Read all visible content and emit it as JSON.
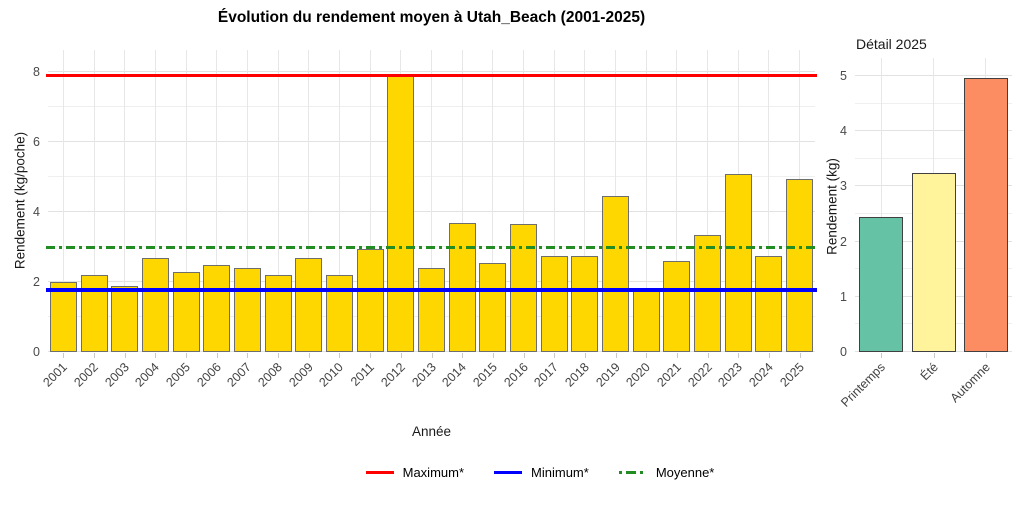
{
  "figure": {
    "background": "#FFFFFF"
  },
  "chart_data": [
    {
      "type": "bar",
      "title": "Évolution du rendement moyen à Utah_Beach (2001-2025)",
      "xlabel": "Année",
      "ylabel": "Rendement (kg/poche)",
      "ylim": [
        0,
        8
      ],
      "yticks": [
        0,
        2,
        4,
        6,
        8
      ],
      "grid": true,
      "legend_position": "bottom",
      "categories": [
        "2001",
        "2002",
        "2003",
        "2004",
        "2005",
        "2006",
        "2007",
        "2008",
        "2009",
        "2010",
        "2011",
        "2012",
        "2013",
        "2014",
        "2015",
        "2016",
        "2017",
        "2018",
        "2019",
        "2020",
        "2021",
        "2022",
        "2023",
        "2024",
        "2025"
      ],
      "values": [
        2.0,
        2.2,
        1.9,
        2.7,
        2.3,
        2.5,
        2.4,
        2.2,
        2.7,
        2.2,
        2.95,
        7.9,
        2.4,
        3.7,
        2.55,
        3.65,
        2.75,
        2.75,
        4.45,
        1.75,
        2.6,
        3.35,
        5.1,
        2.75,
        4.95
      ],
      "bar_color": "#FFD700",
      "bar_border": "#6E6E6E",
      "reference_lines": [
        {
          "name": "maximum",
          "label": "Maximum*",
          "value": 7.9,
          "color": "#FF0000",
          "style": "solid"
        },
        {
          "name": "minimum",
          "label": "Minimum*",
          "value": 1.77,
          "color": "#0000FF",
          "style": "solid"
        },
        {
          "name": "moyenne",
          "label": "Moyenne*",
          "value": 3.0,
          "color": "#228B22",
          "style": "dashdot"
        }
      ]
    },
    {
      "type": "bar",
      "title": "Détail 2025",
      "xlabel": "",
      "ylabel": "Rendement (kg)",
      "ylim": [
        0,
        5
      ],
      "yticks": [
        0,
        1,
        2,
        3,
        4,
        5
      ],
      "grid": true,
      "categories": [
        "Printemps",
        "Été",
        "Automne"
      ],
      "values": [
        2.45,
        3.25,
        4.97
      ],
      "bar_colors": [
        "#66C2A5",
        "#FFF49C",
        "#FC8D62"
      ],
      "bar_border": "#404040"
    }
  ]
}
